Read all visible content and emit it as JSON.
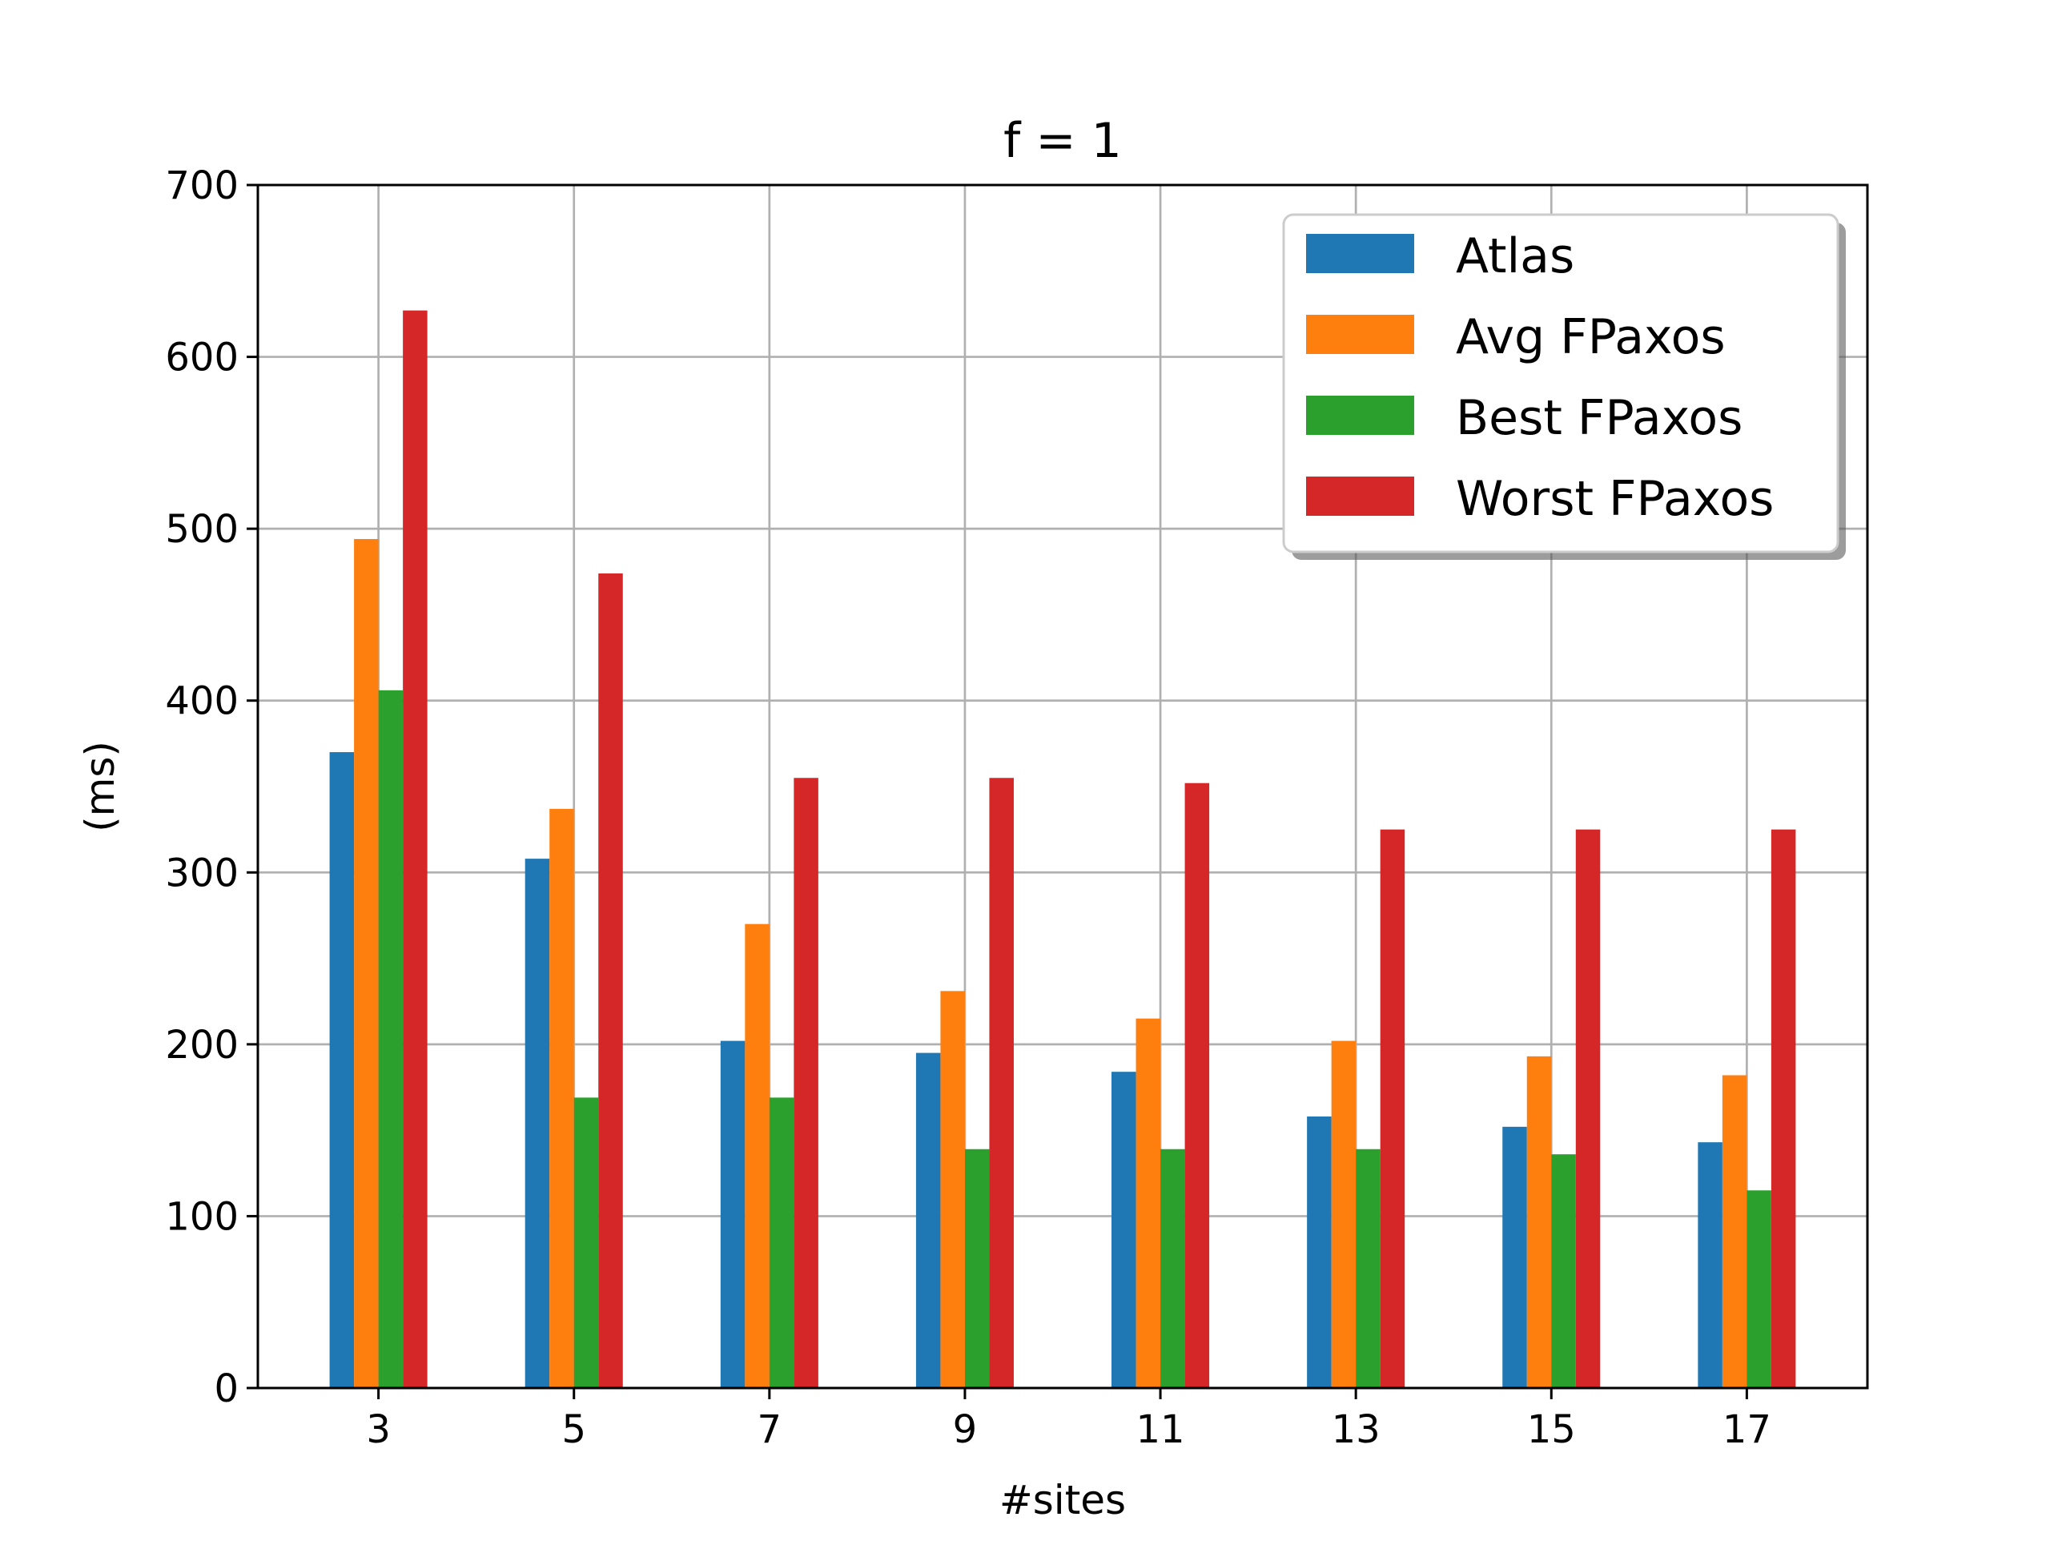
{
  "chart_data": {
    "type": "bar",
    "title": "f = 1",
    "xlabel": "#sites",
    "ylabel": "(ms)",
    "categories": [
      "3",
      "5",
      "7",
      "9",
      "11",
      "13",
      "15",
      "17"
    ],
    "series": [
      {
        "name": "Atlas",
        "color": "#1f77b4",
        "values": [
          370,
          308,
          202,
          195,
          184,
          158,
          152,
          143
        ]
      },
      {
        "name": "Avg FPaxos",
        "color": "#ff7f0e",
        "values": [
          494,
          337,
          270,
          231,
          215,
          202,
          193,
          182
        ]
      },
      {
        "name": "Best FPaxos",
        "color": "#2ca02c",
        "values": [
          406,
          169,
          169,
          139,
          139,
          139,
          136,
          115
        ]
      },
      {
        "name": "Worst FPaxos",
        "color": "#d62728",
        "values": [
          627,
          474,
          355,
          355,
          352,
          325,
          325,
          325
        ]
      }
    ],
    "ylim": [
      0,
      700
    ],
    "yticks": [
      0,
      100,
      200,
      300,
      400,
      500,
      600,
      700
    ],
    "grid": true,
    "legend_position": "top-right"
  }
}
